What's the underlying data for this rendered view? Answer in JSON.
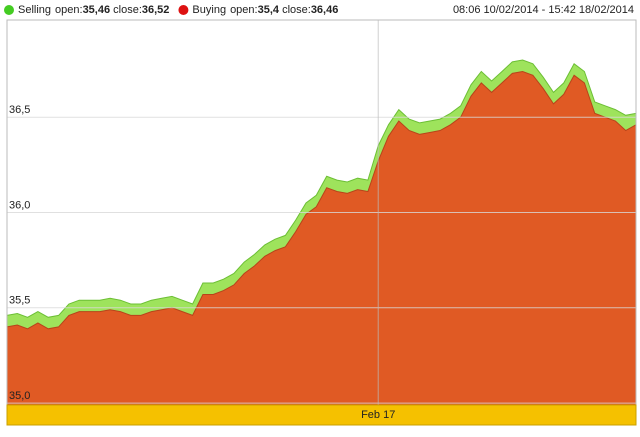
{
  "chart_data": {
    "type": "area",
    "date_range": "08:06 10/02/2014 - 15:42 18/02/2014",
    "open_text": "open:",
    "close_text": " close:",
    "ylim": [
      34.99,
      37.01
    ],
    "yticks": [
      {
        "value": 35.0,
        "label": "35,0"
      },
      {
        "value": 35.5,
        "label": "35,5"
      },
      {
        "value": 36.0,
        "label": "36,0"
      },
      {
        "value": 36.5,
        "label": "36,5"
      }
    ],
    "xlim": [
      0,
      61
    ],
    "xticks": [
      {
        "value": 36,
        "label": "Feb 17"
      }
    ],
    "grid": true,
    "series": [
      {
        "name": "Selling",
        "color": "#9ee35c",
        "line_color": "#6cbf34",
        "open_label": "35,46",
        "close_label": "36,52",
        "values": [
          35.46,
          35.47,
          35.45,
          35.48,
          35.45,
          35.46,
          35.52,
          35.54,
          35.54,
          35.54,
          35.55,
          35.54,
          35.52,
          35.52,
          35.54,
          35.55,
          35.56,
          35.54,
          35.52,
          35.63,
          35.63,
          35.65,
          35.68,
          35.74,
          35.78,
          35.83,
          35.86,
          35.88,
          35.96,
          36.05,
          36.09,
          36.19,
          36.17,
          36.16,
          36.18,
          36.17,
          36.35,
          36.46,
          36.54,
          36.49,
          36.47,
          36.48,
          36.49,
          36.52,
          36.56,
          36.67,
          36.74,
          36.69,
          36.74,
          36.79,
          36.8,
          36.78,
          36.71,
          36.63,
          36.68,
          36.78,
          36.74,
          36.58,
          36.56,
          36.54,
          36.51,
          36.52
        ]
      },
      {
        "name": "Buying",
        "color": "#e05a24",
        "line_color": "#b8441a",
        "open_label": "35,4",
        "close_label": "36,46",
        "values": [
          35.4,
          35.41,
          35.39,
          35.42,
          35.39,
          35.4,
          35.46,
          35.48,
          35.48,
          35.48,
          35.49,
          35.48,
          35.46,
          35.46,
          35.48,
          35.49,
          35.5,
          35.48,
          35.46,
          35.57,
          35.57,
          35.59,
          35.62,
          35.68,
          35.72,
          35.77,
          35.8,
          35.82,
          35.9,
          35.99,
          36.03,
          36.13,
          36.11,
          36.1,
          36.12,
          36.11,
          36.27,
          36.4,
          36.48,
          36.43,
          36.41,
          36.42,
          36.43,
          36.46,
          36.5,
          36.61,
          36.68,
          36.63,
          36.68,
          36.73,
          36.74,
          36.72,
          36.65,
          36.57,
          36.62,
          36.72,
          36.68,
          36.52,
          36.5,
          36.48,
          36.43,
          36.46
        ]
      }
    ]
  }
}
